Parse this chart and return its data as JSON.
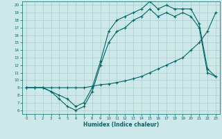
{
  "xlabel": "Humidex (Indice chaleur)",
  "bg_color": "#cce8e8",
  "grid_color": "#aacccc",
  "line_color": "#006666",
  "xlim": [
    -0.5,
    23.5
  ],
  "ylim": [
    5.5,
    20.5
  ],
  "yticks": [
    6,
    7,
    8,
    9,
    10,
    11,
    12,
    13,
    14,
    15,
    16,
    17,
    18,
    19,
    20
  ],
  "xticks": [
    0,
    1,
    2,
    3,
    4,
    5,
    6,
    7,
    8,
    9,
    10,
    11,
    12,
    13,
    14,
    15,
    16,
    17,
    18,
    19,
    20,
    21,
    22,
    23
  ],
  "line1_x": [
    0,
    1,
    2,
    3,
    4,
    5,
    6,
    7,
    8,
    9,
    10,
    11,
    12,
    13,
    14,
    15,
    16,
    17,
    18,
    19,
    20,
    21,
    22,
    23
  ],
  "line1_y": [
    9.0,
    9.0,
    9.0,
    8.5,
    8.0,
    7.5,
    6.5,
    7.0,
    9.0,
    12.5,
    16.5,
    18.0,
    18.5,
    19.0,
    19.5,
    20.5,
    19.5,
    20.0,
    19.5,
    19.5,
    19.5,
    17.5,
    11.5,
    10.5
  ],
  "line2_x": [
    0,
    1,
    2,
    3,
    4,
    5,
    6,
    7,
    8,
    9,
    10,
    11,
    12,
    13,
    14,
    15,
    16,
    17,
    18,
    19,
    20,
    21,
    22,
    23
  ],
  "line2_y": [
    9.0,
    9.0,
    9.0,
    8.5,
    7.5,
    6.5,
    6.0,
    6.5,
    8.5,
    12.0,
    15.0,
    16.5,
    17.0,
    18.0,
    18.5,
    19.5,
    18.5,
    19.0,
    18.5,
    19.0,
    18.5,
    17.0,
    11.0,
    10.5
  ],
  "line3_x": [
    0,
    1,
    2,
    3,
    4,
    5,
    6,
    7,
    8,
    9,
    10,
    11,
    12,
    13,
    14,
    15,
    16,
    17,
    18,
    19,
    20,
    21,
    22,
    23
  ],
  "line3_y": [
    9.0,
    9.0,
    9.0,
    9.0,
    9.0,
    9.0,
    9.0,
    9.0,
    9.2,
    9.4,
    9.5,
    9.7,
    9.9,
    10.2,
    10.5,
    11.0,
    11.5,
    12.0,
    12.5,
    13.0,
    14.0,
    15.0,
    16.5,
    19.0
  ]
}
